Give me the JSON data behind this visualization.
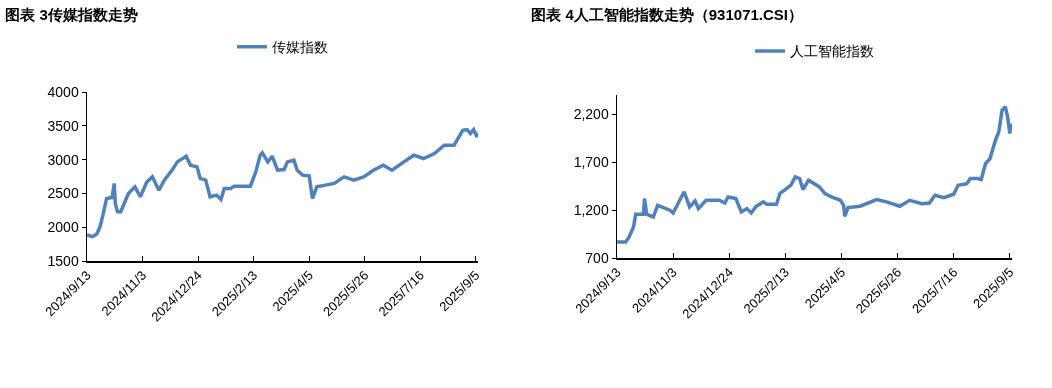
{
  "chart_data": [
    {
      "type": "line",
      "title": "图表 3传媒指数走势",
      "legend": "top",
      "grid": false,
      "marker": "none",
      "line_style": "solid",
      "xlim": [
        "2024-09-13",
        "2025-09-07"
      ],
      "xticks": [
        {
          "value": "2024-09-13",
          "label": "2024/9/13"
        },
        {
          "value": "2024-11-03",
          "label": "2024/11/3"
        },
        {
          "value": "2024-12-24",
          "label": "2024/12/24"
        },
        {
          "value": "2025-02-13",
          "label": "2025/2/13"
        },
        {
          "value": "2025-04-05",
          "label": "2025/4/5"
        },
        {
          "value": "2025-05-26",
          "label": "2025/5/26"
        },
        {
          "value": "2025-07-16",
          "label": "2025/7/16"
        },
        {
          "value": "2025-09-05",
          "label": "2025/9/5"
        }
      ],
      "ylim": [
        1500,
        4000
      ],
      "yticks": [
        1500,
        2000,
        2500,
        3000,
        3500,
        4000
      ],
      "x": [
        "2024-09-13",
        "2024-09-18",
        "2024-09-22",
        "2024-09-25",
        "2024-09-28",
        "2024-10-01",
        "2024-10-06",
        "2024-10-08",
        "2024-10-09",
        "2024-10-11",
        "2024-10-14",
        "2024-10-21",
        "2024-10-27",
        "2024-11-01",
        "2024-11-07",
        "2024-11-12",
        "2024-11-18",
        "2024-11-23",
        "2024-11-30",
        "2024-12-05",
        "2024-12-13",
        "2024-12-17",
        "2024-12-23",
        "2024-12-26",
        "2024-12-31",
        "2025-01-04",
        "2025-01-10",
        "2025-01-14",
        "2025-01-17",
        "2025-01-23",
        "2025-01-26",
        "2025-02-10",
        "2025-02-15",
        "2025-02-19",
        "2025-02-21",
        "2025-02-26",
        "2025-03-02",
        "2025-03-07",
        "2025-03-13",
        "2025-03-16",
        "2025-03-22",
        "2025-03-25",
        "2025-03-30",
        "2025-04-05",
        "2025-04-08",
        "2025-04-12",
        "2025-04-20",
        "2025-04-28",
        "2025-05-07",
        "2025-05-16",
        "2025-05-25",
        "2025-06-03",
        "2025-06-12",
        "2025-06-20",
        "2025-07-01",
        "2025-07-10",
        "2025-07-19",
        "2025-07-29",
        "2025-08-07",
        "2025-08-16",
        "2025-08-24",
        "2025-08-28",
        "2025-08-31",
        "2025-09-03",
        "2025-09-06",
        "2025-09-07"
      ],
      "series": [
        {
          "name": "传媒指数",
          "color": "#4f81bd",
          "values": [
            1884,
            1860,
            1900,
            2007,
            2204,
            2425,
            2440,
            2647,
            2351,
            2228,
            2228,
            2499,
            2597,
            2450,
            2671,
            2745,
            2548,
            2696,
            2843,
            2966,
            3050,
            2918,
            2893,
            2721,
            2696,
            2450,
            2474,
            2410,
            2573,
            2573,
            2607,
            2607,
            2819,
            3065,
            3099,
            2966,
            3050,
            2843,
            2853,
            2966,
            2991,
            2843,
            2770,
            2760,
            2425,
            2597,
            2622,
            2647,
            2745,
            2696,
            2745,
            2843,
            2917,
            2843,
            2966,
            3065,
            3016,
            3090,
            3213,
            3213,
            3434,
            3444,
            3385,
            3444,
            3336,
            3395
          ]
        }
      ]
    },
    {
      "type": "line",
      "title": "图表 4人工智能指数走势（931071.CSI）",
      "legend": "top",
      "grid": false,
      "marker": "none",
      "line_style": "solid",
      "xlim": [
        "2024-09-13",
        "2025-09-07"
      ],
      "xticks": [
        {
          "value": "2024-09-13",
          "label": "2024/9/13"
        },
        {
          "value": "2024-11-03",
          "label": "2024/11/3"
        },
        {
          "value": "2024-12-24",
          "label": "2024/12/24"
        },
        {
          "value": "2025-02-13",
          "label": "2025/2/13"
        },
        {
          "value": "2025-04-05",
          "label": "2025/4/5"
        },
        {
          "value": "2025-05-26",
          "label": "2025/5/26"
        },
        {
          "value": "2025-07-16",
          "label": "2025/7/16"
        },
        {
          "value": "2025-09-05",
          "label": "2025/9/5"
        }
      ],
      "ylim": [
        700,
        2400
      ],
      "yticks": [
        700,
        {
          "value": 1200,
          "label": "1,200"
        },
        {
          "value": 1700,
          "label": "1,700"
        },
        {
          "value": 2200,
          "label": "2,200"
        }
      ],
      "x": [
        "2024-09-13",
        "2024-09-21",
        "2024-09-24",
        "2024-09-28",
        "2024-09-30",
        "2024-10-07",
        "2024-10-08",
        "2024-10-10",
        "2024-10-16",
        "2024-10-20",
        "2024-10-31",
        "2024-11-03",
        "2024-11-09",
        "2024-11-13",
        "2024-11-18",
        "2024-11-23",
        "2024-11-26",
        "2024-12-03",
        "2024-12-15",
        "2024-12-20",
        "2024-12-23",
        "2024-12-30",
        "2025-01-04",
        "2025-01-09",
        "2025-01-13",
        "2025-01-17",
        "2025-01-24",
        "2025-01-27",
        "2025-02-05",
        "2025-02-08",
        "2025-02-14",
        "2025-02-18",
        "2025-02-22",
        "2025-02-26",
        "2025-03-01",
        "2025-03-06",
        "2025-03-16",
        "2025-03-21",
        "2025-03-27",
        "2025-04-04",
        "2025-04-07",
        "2025-04-08",
        "2025-04-11",
        "2025-04-22",
        "2025-05-07",
        "2025-05-16",
        "2025-05-28",
        "2025-06-06",
        "2025-06-17",
        "2025-06-24",
        "2025-06-29",
        "2025-07-07",
        "2025-07-16",
        "2025-07-20",
        "2025-07-28",
        "2025-07-31",
        "2025-08-07",
        "2025-08-10",
        "2025-08-14",
        "2025-08-18",
        "2025-08-23",
        "2025-08-26",
        "2025-08-29",
        "2025-09-01",
        "2025-09-03",
        "2025-09-05",
        "2025-09-06"
      ],
      "series": [
        {
          "name": "人工智能指数",
          "color": "#4f81bd",
          "values": [
            867,
            867,
            919,
            1024,
            1156,
            1156,
            1320,
            1156,
            1128,
            1250,
            1198,
            1170,
            1302,
            1389,
            1233,
            1295,
            1215,
            1302,
            1302,
            1274,
            1337,
            1320,
            1180,
            1215,
            1170,
            1233,
            1285,
            1260,
            1260,
            1372,
            1424,
            1459,
            1546,
            1528,
            1414,
            1511,
            1441,
            1372,
            1337,
            1302,
            1250,
            1135,
            1226,
            1240,
            1309,
            1285,
            1240,
            1302,
            1267,
            1274,
            1354,
            1330,
            1365,
            1459,
            1476,
            1528,
            1528,
            1518,
            1685,
            1737,
            1929,
            2016,
            2242,
            2277,
            2172,
            1998,
            2103
          ]
        }
      ]
    }
  ]
}
